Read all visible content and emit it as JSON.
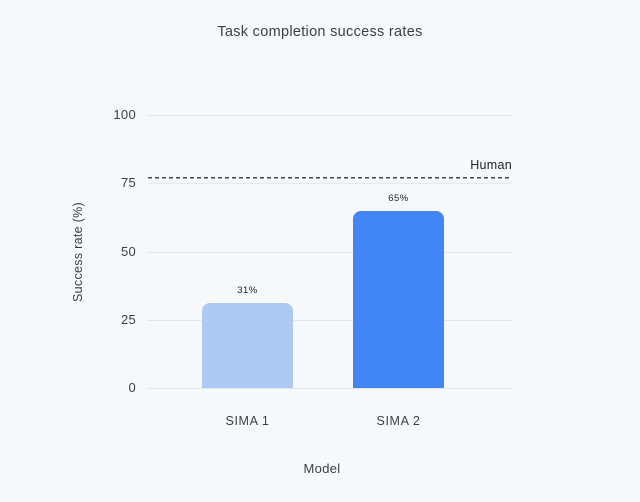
{
  "page": {
    "background_color": "#f6f8fc"
  },
  "chart_data": {
    "type": "bar",
    "title": "Task completion success rates",
    "xlabel": "Model",
    "ylabel": "Success rate (%)",
    "categories": [
      "SIMA 1",
      "SIMA 2"
    ],
    "values": [
      31,
      65
    ],
    "value_labels": [
      "31%",
      "65%"
    ],
    "bar_colors": [
      "#aecaf4",
      "#4285f4"
    ],
    "ylim": [
      0,
      100
    ],
    "yticks": [
      0,
      25,
      50,
      75,
      100
    ],
    "grid": true,
    "gridline_color": "#e4e7ec",
    "legend": "none",
    "reference_line": {
      "label": "Human",
      "value": 77,
      "style": "dashed",
      "color": "#43474d"
    }
  }
}
